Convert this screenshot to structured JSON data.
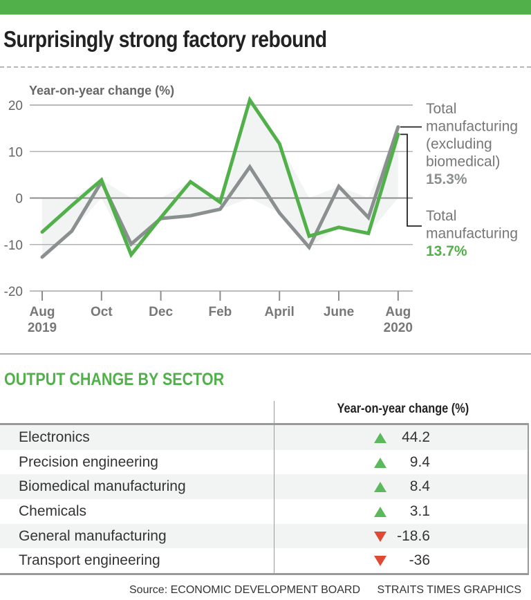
{
  "header": {
    "title": "Surprisingly strong factory rebound",
    "accent_color": "#52b04a"
  },
  "chart_data": {
    "type": "line",
    "title": "Surprisingly strong factory rebound",
    "ylabel": "Year-on-year change (%)",
    "xlabel": "",
    "ylim": [
      -20,
      20
    ],
    "yticks": [
      20,
      10,
      0,
      -10,
      -20
    ],
    "ytick_labels": [
      "20",
      "10",
      "0",
      "-10",
      "-20"
    ],
    "grid": true,
    "x": [
      "Aug 2019",
      "Sep 2019",
      "Oct 2019",
      "Nov 2019",
      "Dec 2019",
      "Jan 2020",
      "Feb 2020",
      "Mar 2020",
      "Apr 2020",
      "May 2020",
      "Jun 2020",
      "Jul 2020",
      "Aug 2020"
    ],
    "xtick_indices": [
      0,
      2,
      4,
      6,
      8,
      10,
      12
    ],
    "xtick_labels": [
      [
        "Aug",
        "2019"
      ],
      [
        "Oct"
      ],
      [
        "Dec"
      ],
      [
        "Feb"
      ],
      [
        "April"
      ],
      [
        "June"
      ],
      [
        "Aug",
        "2020"
      ]
    ],
    "series": [
      {
        "name": "Total manufacturing (excluding biomedical)",
        "color": "#8a8f90",
        "values": [
          -12.7,
          -7.1,
          3.5,
          -9.9,
          -4.4,
          -3.8,
          -2.4,
          6.7,
          -3.2,
          -10.6,
          2.5,
          -4.2,
          15.3
        ],
        "label_lines": [
          "Total",
          "manufacturing",
          "(excluding",
          "biomedical)"
        ],
        "end_value_label": "15.3%"
      },
      {
        "name": "Total manufacturing",
        "color": "#52b04a",
        "values": [
          -7.3,
          -1.6,
          3.9,
          -12.2,
          -4.2,
          3.5,
          -0.9,
          21.1,
          11.7,
          -8.2,
          -6.3,
          -7.6,
          13.7
        ],
        "label_lines": [
          "Total",
          "manufacturing"
        ],
        "end_value_label": "13.7%"
      }
    ],
    "range_fill_color": "#f2f3f3",
    "legend": "right"
  },
  "sector_table": {
    "title": "OUTPUT CHANGE BY SECTOR",
    "column_header": "Year-on-year change (%)",
    "up_color": "#5cb85c",
    "down_color": "#e04a35",
    "rows": [
      {
        "sector": "Electronics",
        "value": "44.2",
        "direction": "up"
      },
      {
        "sector": "Precision engineering",
        "value": "9.4",
        "direction": "up"
      },
      {
        "sector": "Biomedical manufacturing",
        "value": "8.4",
        "direction": "up"
      },
      {
        "sector": "Chemicals",
        "value": "3.1",
        "direction": "up"
      },
      {
        "sector": "General manufacturing",
        "value": "-18.6",
        "direction": "down"
      },
      {
        "sector": "Transport engineering",
        "value": "-36",
        "direction": "down"
      }
    ]
  },
  "footer": {
    "source": "Source: ECONOMIC DEVELOPMENT BOARD",
    "credit": "STRAITS TIMES GRAPHICS"
  }
}
